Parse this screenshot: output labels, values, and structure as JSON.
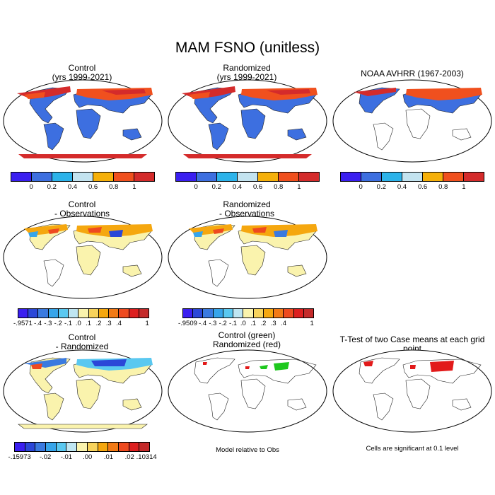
{
  "title": "MAM FSNO (unitless)",
  "panels": {
    "control": {
      "title1": "Control",
      "title2": "(yrs 1999-2021)"
    },
    "randomized": {
      "title1": "Randomized",
      "title2": "(yrs 1999-2021)"
    },
    "obs": {
      "title1": "NOAA AVHRR (1967-2003)"
    },
    "control_minus_obs": {
      "title1": "Control",
      "title2": "- Observations"
    },
    "randomized_minus_obs": {
      "title1": "Randomized",
      "title2": "- Observations"
    },
    "control_minus_randomized": {
      "title1": "Control",
      "title2": "- Randomized"
    },
    "model_vs_obs": {
      "title1": "Control (green)",
      "title2": "Randomized (red)",
      "note": "Model relative to Obs"
    },
    "ttest": {
      "title1": "T-Test of two Case means at each grid point",
      "note": "Cells are significant at 0.1 level"
    }
  },
  "colorbars": {
    "fraction": {
      "colors": [
        "#3a1ff0",
        "#3d6fe0",
        "#2cb3ea",
        "#c3e3ef",
        "#f5b00a",
        "#f0501e",
        "#d42b2b"
      ],
      "labels": [
        "0",
        "0.2",
        "0.4",
        "0.6",
        "0.8",
        "1"
      ]
    },
    "diff_obs_control": {
      "colors": [
        "#3a1ff0",
        "#2b47d8",
        "#3a7ae0",
        "#37a5ea",
        "#5ac8f0",
        "#bfe6f2",
        "#faf3ad",
        "#f7d35c",
        "#f5a70f",
        "#f27a16",
        "#ee4a1f",
        "#dd1f1f",
        "#c42a2a"
      ],
      "labels": [
        "-.9571",
        "-.4",
        "-.3",
        "-.2",
        "-.1",
        ".0",
        ".1",
        ".2",
        ".3",
        ".4",
        "1"
      ]
    },
    "diff_obs_randomized": {
      "colors": [
        "#3a1ff0",
        "#2b47d8",
        "#3a7ae0",
        "#37a5ea",
        "#5ac8f0",
        "#bfe6f2",
        "#faf3ad",
        "#f7d35c",
        "#f5a70f",
        "#f27a16",
        "#ee4a1f",
        "#dd1f1f",
        "#c42a2a"
      ],
      "labels": [
        "-.9509",
        "-.4",
        "-.3",
        "-.2",
        "-.1",
        ".0",
        ".1",
        ".2",
        ".3",
        ".4",
        "1"
      ]
    },
    "diff_cases": {
      "colors": [
        "#3a1ff0",
        "#2b47d8",
        "#3a7ae0",
        "#37a5ea",
        "#5ac8f0",
        "#bfe6f2",
        "#faf3ad",
        "#f7d35c",
        "#f5a70f",
        "#f27a16",
        "#ee4a1f",
        "#dd1f1f",
        "#c42a2a"
      ],
      "labels": [
        "-.15973",
        "-.02",
        "-.01",
        ".00",
        ".01",
        ".02",
        ".10314"
      ]
    }
  }
}
